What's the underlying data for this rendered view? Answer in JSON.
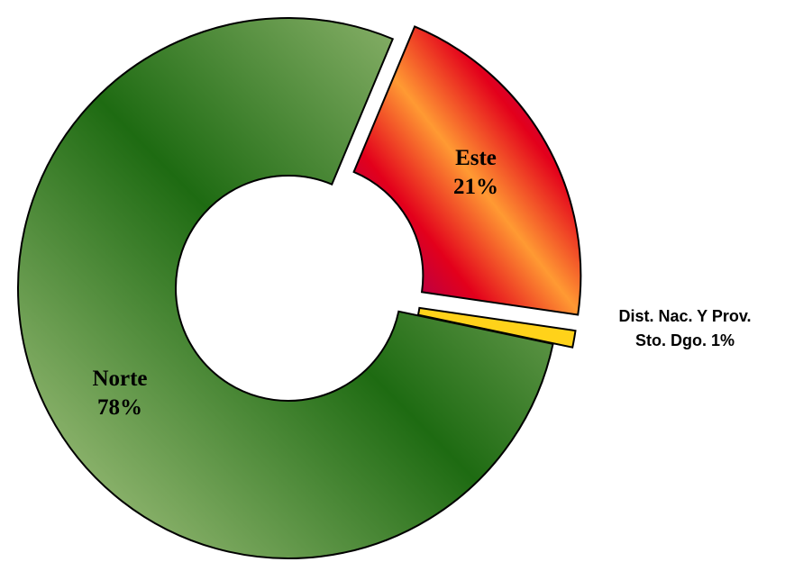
{
  "chart_data": {
    "type": "pie",
    "title": "",
    "donut": true,
    "exploded": true,
    "legend": "none",
    "slices": [
      {
        "name": "Norte",
        "value": 78,
        "label": [
          "Norte",
          "78%"
        ],
        "color": "#1e6b12",
        "color_light": "#b3cc8c"
      },
      {
        "name": "Este",
        "value": 21,
        "label": [
          "Este",
          "21%"
        ],
        "color": "#e3001b",
        "color_alt": "#800080",
        "color_hi": "#ff9a33"
      },
      {
        "name": "Dist. Nac. Y Prov. Sto. Dgo.",
        "value": 1,
        "label": [
          "Dist. Nac. Y Prov.",
          "Sto. Dgo. 1%"
        ],
        "color": "#ffd21a"
      }
    ]
  }
}
